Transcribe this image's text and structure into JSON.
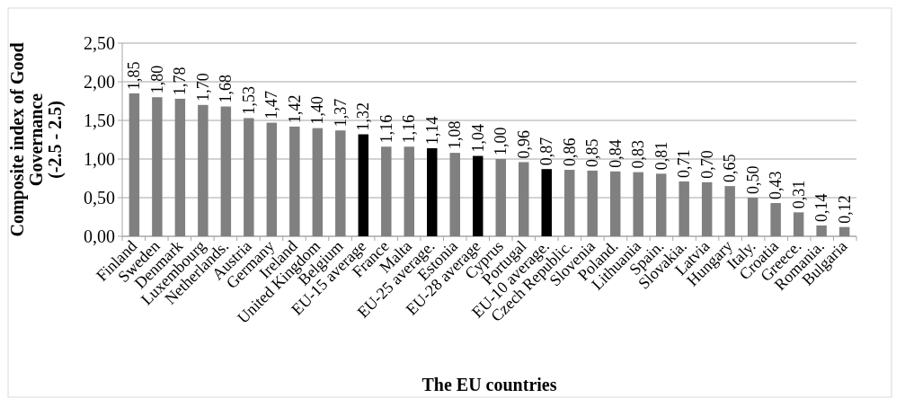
{
  "chart_data": {
    "type": "bar",
    "xlabel": "The EU countries",
    "ylabel": "Composite index of Good\nGovernance\n(-2.5 - 2.5)",
    "categories": [
      "Finland",
      "Sweden",
      "Denmark",
      "Luxembourg",
      "Netherlands.",
      "Austria",
      "Germany",
      "Ireland",
      "United Kingdom",
      "Belgium",
      "EU-15 average",
      "France",
      "Malta",
      "EU-25 average.",
      "Estonia",
      "EU-28 average",
      "Cyprus",
      "Portugal",
      "EU-10 average.",
      "Czech Republic.",
      "Slovenia",
      "Poland.",
      "Lithuania",
      "Spain.",
      "Slovakia.",
      "Latvia",
      "Hungary",
      "Italy.",
      "Croatia",
      "Greece.",
      "Romania.",
      "Bulgaria"
    ],
    "values": [
      1.85,
      1.8,
      1.78,
      1.7,
      1.68,
      1.53,
      1.47,
      1.42,
      1.4,
      1.37,
      1.32,
      1.16,
      1.16,
      1.14,
      1.08,
      1.04,
      1.0,
      0.96,
      0.87,
      0.86,
      0.85,
      0.84,
      0.83,
      0.81,
      0.71,
      0.7,
      0.65,
      0.5,
      0.43,
      0.31,
      0.14,
      0.12
    ],
    "value_labels": [
      "1,85",
      "1,80",
      "1,78",
      "1,70",
      "1,68",
      "1,53",
      "1,47",
      "1,42",
      "1,40",
      "1,37",
      "1,32",
      "1,16",
      "1,16",
      "1,14",
      "1,08",
      "1,04",
      "1,00",
      "0,96",
      "0,87",
      "0,86",
      "0,85",
      "0,84",
      "0,83",
      "0,81",
      "0,71",
      "0,70",
      "0,65",
      "0,50",
      "0,43",
      "0,31",
      "0,14",
      "0,12"
    ],
    "colors": [
      "#808080",
      "#808080",
      "#808080",
      "#808080",
      "#808080",
      "#808080",
      "#808080",
      "#808080",
      "#808080",
      "#808080",
      "#000000",
      "#808080",
      "#808080",
      "#000000",
      "#808080",
      "#000000",
      "#808080",
      "#808080",
      "#000000",
      "#808080",
      "#808080",
      "#808080",
      "#808080",
      "#808080",
      "#808080",
      "#808080",
      "#808080",
      "#808080",
      "#808080",
      "#808080",
      "#808080",
      "#808080"
    ],
    "ylim": [
      0,
      2.5
    ],
    "yticks": [
      {
        "value": 0,
        "label": "0,00"
      },
      {
        "value": 0.5,
        "label": "0,50"
      },
      {
        "value": 1,
        "label": "1,00"
      },
      {
        "value": 1.5,
        "label": "1,50"
      },
      {
        "value": 2,
        "label": "2,00"
      },
      {
        "value": 2.5,
        "label": "2,50"
      }
    ],
    "grid": "y"
  }
}
